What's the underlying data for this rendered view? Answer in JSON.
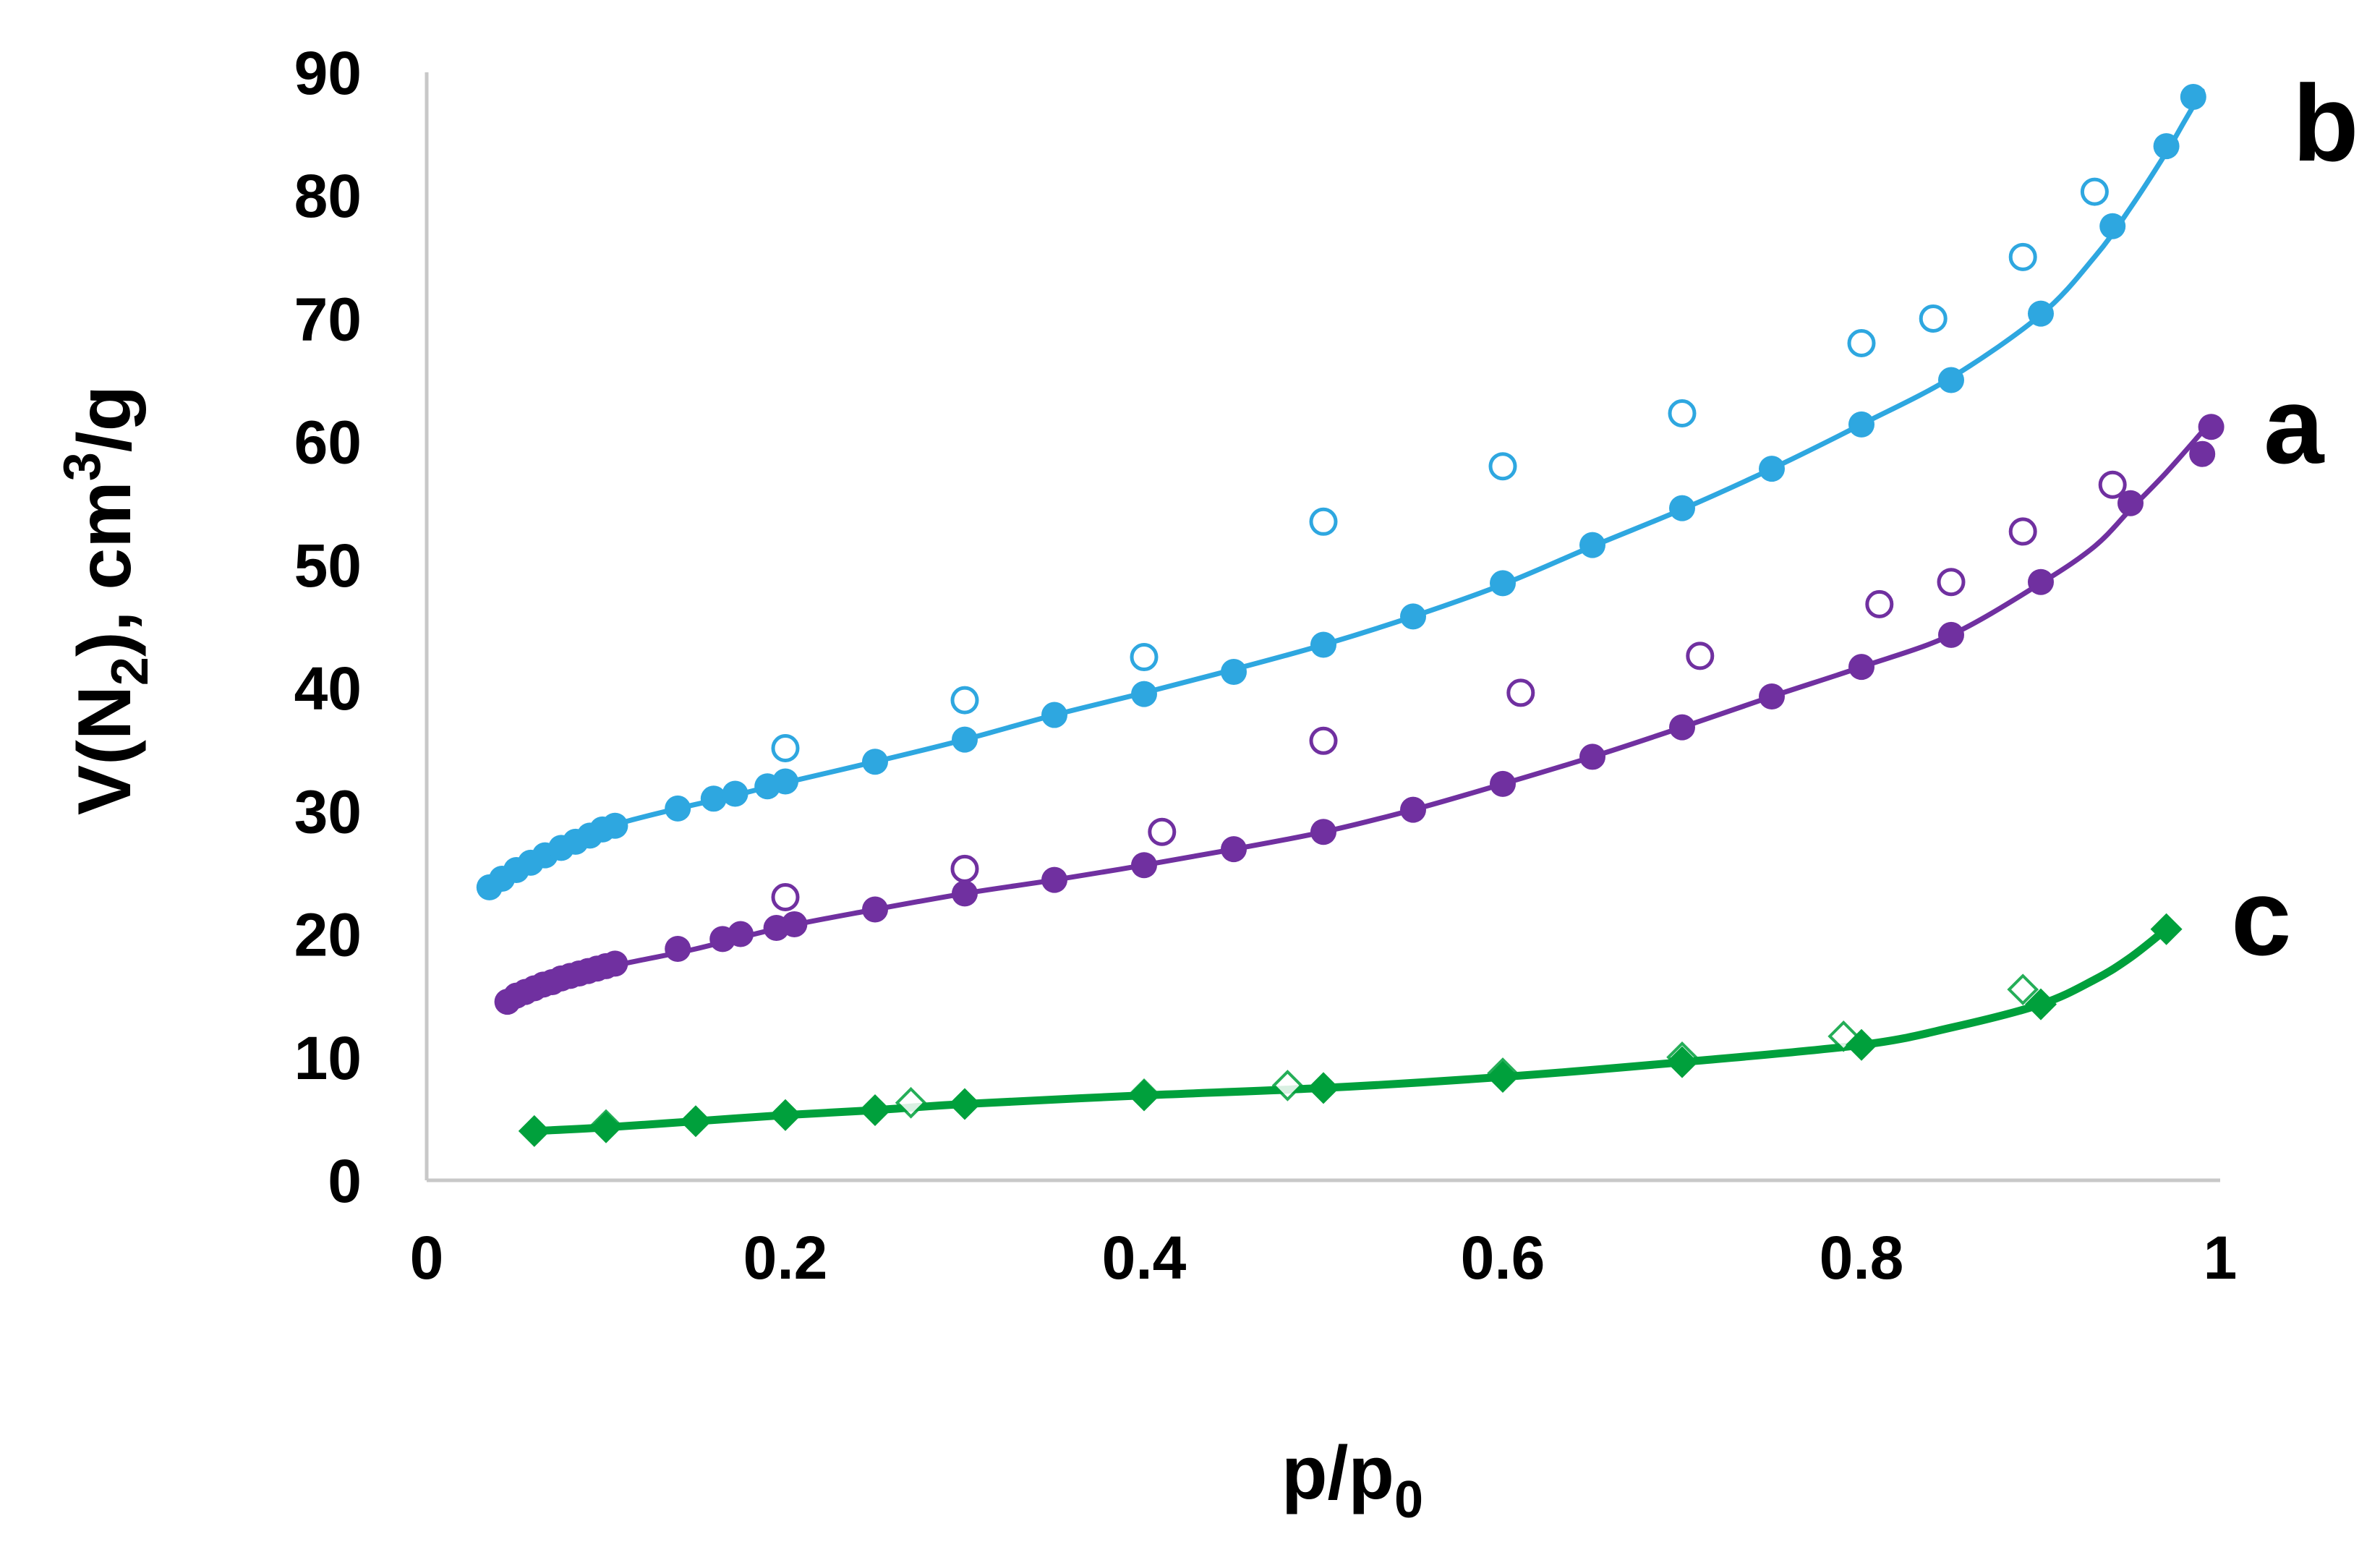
{
  "colors": {
    "a": "#7030a0",
    "b": "#2ea7e0",
    "c": "#00a03c",
    "axis": "#c8c8c8"
  },
  "chart_data": {
    "type": "scatter",
    "title": "",
    "xlabel": "p/p",
    "xlabel_sub": "0",
    "ylabel_parts": {
      "v": "V(N",
      "n_sub": "2",
      "close": "), cm",
      "cube": "3",
      "per": "/g"
    },
    "xlim": [
      0,
      1
    ],
    "ylim": [
      0,
      90
    ],
    "xticks": [
      0,
      0.2,
      0.4,
      0.6,
      0.8,
      1
    ],
    "xtick_labels": [
      "0",
      "0.2",
      "0.4",
      "0.6",
      "0.8",
      "1"
    ],
    "yticks": [
      0,
      10,
      20,
      30,
      40,
      50,
      60,
      70,
      80,
      90
    ],
    "ytick_labels": [
      "0",
      "10",
      "20",
      "30",
      "40",
      "50",
      "60",
      "70",
      "80",
      "90"
    ],
    "grid": false,
    "series": [
      {
        "name": "b",
        "color": "#2ea7e0",
        "marker": "circle",
        "adsorption": {
          "x": [
            0.035,
            0.042,
            0.05,
            0.058,
            0.066,
            0.075,
            0.083,
            0.091,
            0.098,
            0.105,
            0.14,
            0.16,
            0.172,
            0.19,
            0.2,
            0.25,
            0.3,
            0.35,
            0.4,
            0.45,
            0.5,
            0.55,
            0.6,
            0.65,
            0.7,
            0.75,
            0.8,
            0.85,
            0.9,
            0.94,
            0.97,
            0.985
          ],
          "y": [
            23.8,
            24.5,
            25.2,
            25.8,
            26.4,
            27.0,
            27.5,
            28.0,
            28.5,
            28.8,
            30.2,
            31.0,
            31.4,
            32.0,
            32.4,
            34.0,
            35.8,
            37.8,
            39.5,
            41.3,
            43.5,
            45.8,
            48.5,
            51.6,
            54.6,
            57.8,
            61.4,
            65.0,
            70.4,
            77.5,
            84.0,
            88.0
          ]
        },
        "desorption": {
          "x": [
            0.2,
            0.3,
            0.4,
            0.5,
            0.6,
            0.7,
            0.8,
            0.84,
            0.89,
            0.93
          ],
          "y": [
            35.1,
            39.0,
            42.5,
            53.5,
            58.0,
            62.3,
            68.0,
            70.0,
            75.0,
            80.3
          ]
        },
        "curve": {
          "x": [
            0.035,
            0.05,
            0.07,
            0.09,
            0.11,
            0.14,
            0.17,
            0.2,
            0.25,
            0.3,
            0.35,
            0.4,
            0.45,
            0.5,
            0.55,
            0.6,
            0.65,
            0.7,
            0.75,
            0.8,
            0.85,
            0.9,
            0.93,
            0.95,
            0.97,
            0.98,
            0.99
          ],
          "y": [
            23.6,
            25.1,
            26.7,
            28.1,
            29.1,
            30.2,
            31.2,
            32.3,
            34.0,
            35.8,
            37.8,
            39.6,
            41.5,
            43.5,
            45.8,
            48.4,
            51.5,
            54.5,
            57.8,
            61.4,
            65.2,
            70.3,
            75.0,
            79.0,
            83.5,
            86.0,
            88.5
          ]
        }
      },
      {
        "name": "a",
        "color": "#7030a0",
        "marker": "circle",
        "adsorption": {
          "x": [
            0.045,
            0.05,
            0.055,
            0.06,
            0.065,
            0.07,
            0.075,
            0.08,
            0.085,
            0.09,
            0.095,
            0.1,
            0.105,
            0.14,
            0.165,
            0.175,
            0.195,
            0.205,
            0.25,
            0.3,
            0.35,
            0.4,
            0.45,
            0.5,
            0.55,
            0.6,
            0.65,
            0.7,
            0.75,
            0.8,
            0.85,
            0.9,
            0.95,
            0.99,
            0.995
          ],
          "y": [
            14.5,
            15.0,
            15.3,
            15.6,
            15.9,
            16.1,
            16.4,
            16.6,
            16.8,
            17.0,
            17.2,
            17.4,
            17.6,
            18.8,
            19.6,
            20.0,
            20.5,
            20.8,
            22.0,
            23.3,
            24.4,
            25.6,
            26.9,
            28.3,
            30.1,
            32.2,
            34.4,
            36.8,
            39.3,
            41.7,
            44.3,
            48.6,
            55.0,
            59.0,
            61.2
          ]
        },
        "desorption": {
          "x": [
            0.2,
            0.3,
            0.41,
            0.5,
            0.61,
            0.71,
            0.81,
            0.85,
            0.89,
            0.94
          ],
          "y": [
            23.0,
            25.3,
            28.3,
            35.7,
            39.6,
            42.6,
            46.8,
            48.6,
            52.7,
            56.5
          ]
        },
        "curve": {
          "x": [
            0.045,
            0.06,
            0.08,
            0.1,
            0.12,
            0.15,
            0.2,
            0.25,
            0.3,
            0.35,
            0.4,
            0.45,
            0.5,
            0.55,
            0.6,
            0.65,
            0.7,
            0.75,
            0.8,
            0.85,
            0.9,
            0.93,
            0.95,
            0.97,
            0.99
          ],
          "y": [
            14.5,
            15.6,
            16.6,
            17.3,
            17.9,
            18.8,
            20.6,
            22.0,
            23.3,
            24.4,
            25.6,
            26.9,
            28.3,
            30.1,
            32.2,
            34.4,
            36.8,
            39.3,
            41.7,
            44.3,
            48.5,
            51.5,
            54.5,
            57.5,
            60.8
          ]
        }
      },
      {
        "name": "c",
        "color": "#00a03c",
        "marker": "diamond",
        "adsorption": {
          "x": [
            0.06,
            0.1,
            0.15,
            0.2,
            0.25,
            0.3,
            0.4,
            0.5,
            0.6,
            0.7,
            0.8,
            0.9,
            0.97
          ],
          "y": [
            4.0,
            4.3,
            4.8,
            5.3,
            5.7,
            6.2,
            6.9,
            7.5,
            8.4,
            9.6,
            11.0,
            14.3,
            20.4
          ]
        },
        "desorption": {
          "x": [
            0.1,
            0.2,
            0.27,
            0.4,
            0.48,
            0.6,
            0.7,
            0.79,
            0.89
          ],
          "y": [
            4.5,
            5.3,
            6.3,
            7.0,
            7.7,
            8.7,
            10.0,
            11.7,
            15.5
          ]
        },
        "curve": {
          "x": [
            0.06,
            0.1,
            0.15,
            0.2,
            0.25,
            0.3,
            0.4,
            0.5,
            0.6,
            0.7,
            0.8,
            0.85,
            0.9,
            0.93,
            0.95,
            0.97
          ],
          "y": [
            4.0,
            4.3,
            4.8,
            5.3,
            5.7,
            6.2,
            6.9,
            7.5,
            8.4,
            9.6,
            11.0,
            12.4,
            14.3,
            16.3,
            18.1,
            20.4
          ]
        }
      }
    ]
  }
}
